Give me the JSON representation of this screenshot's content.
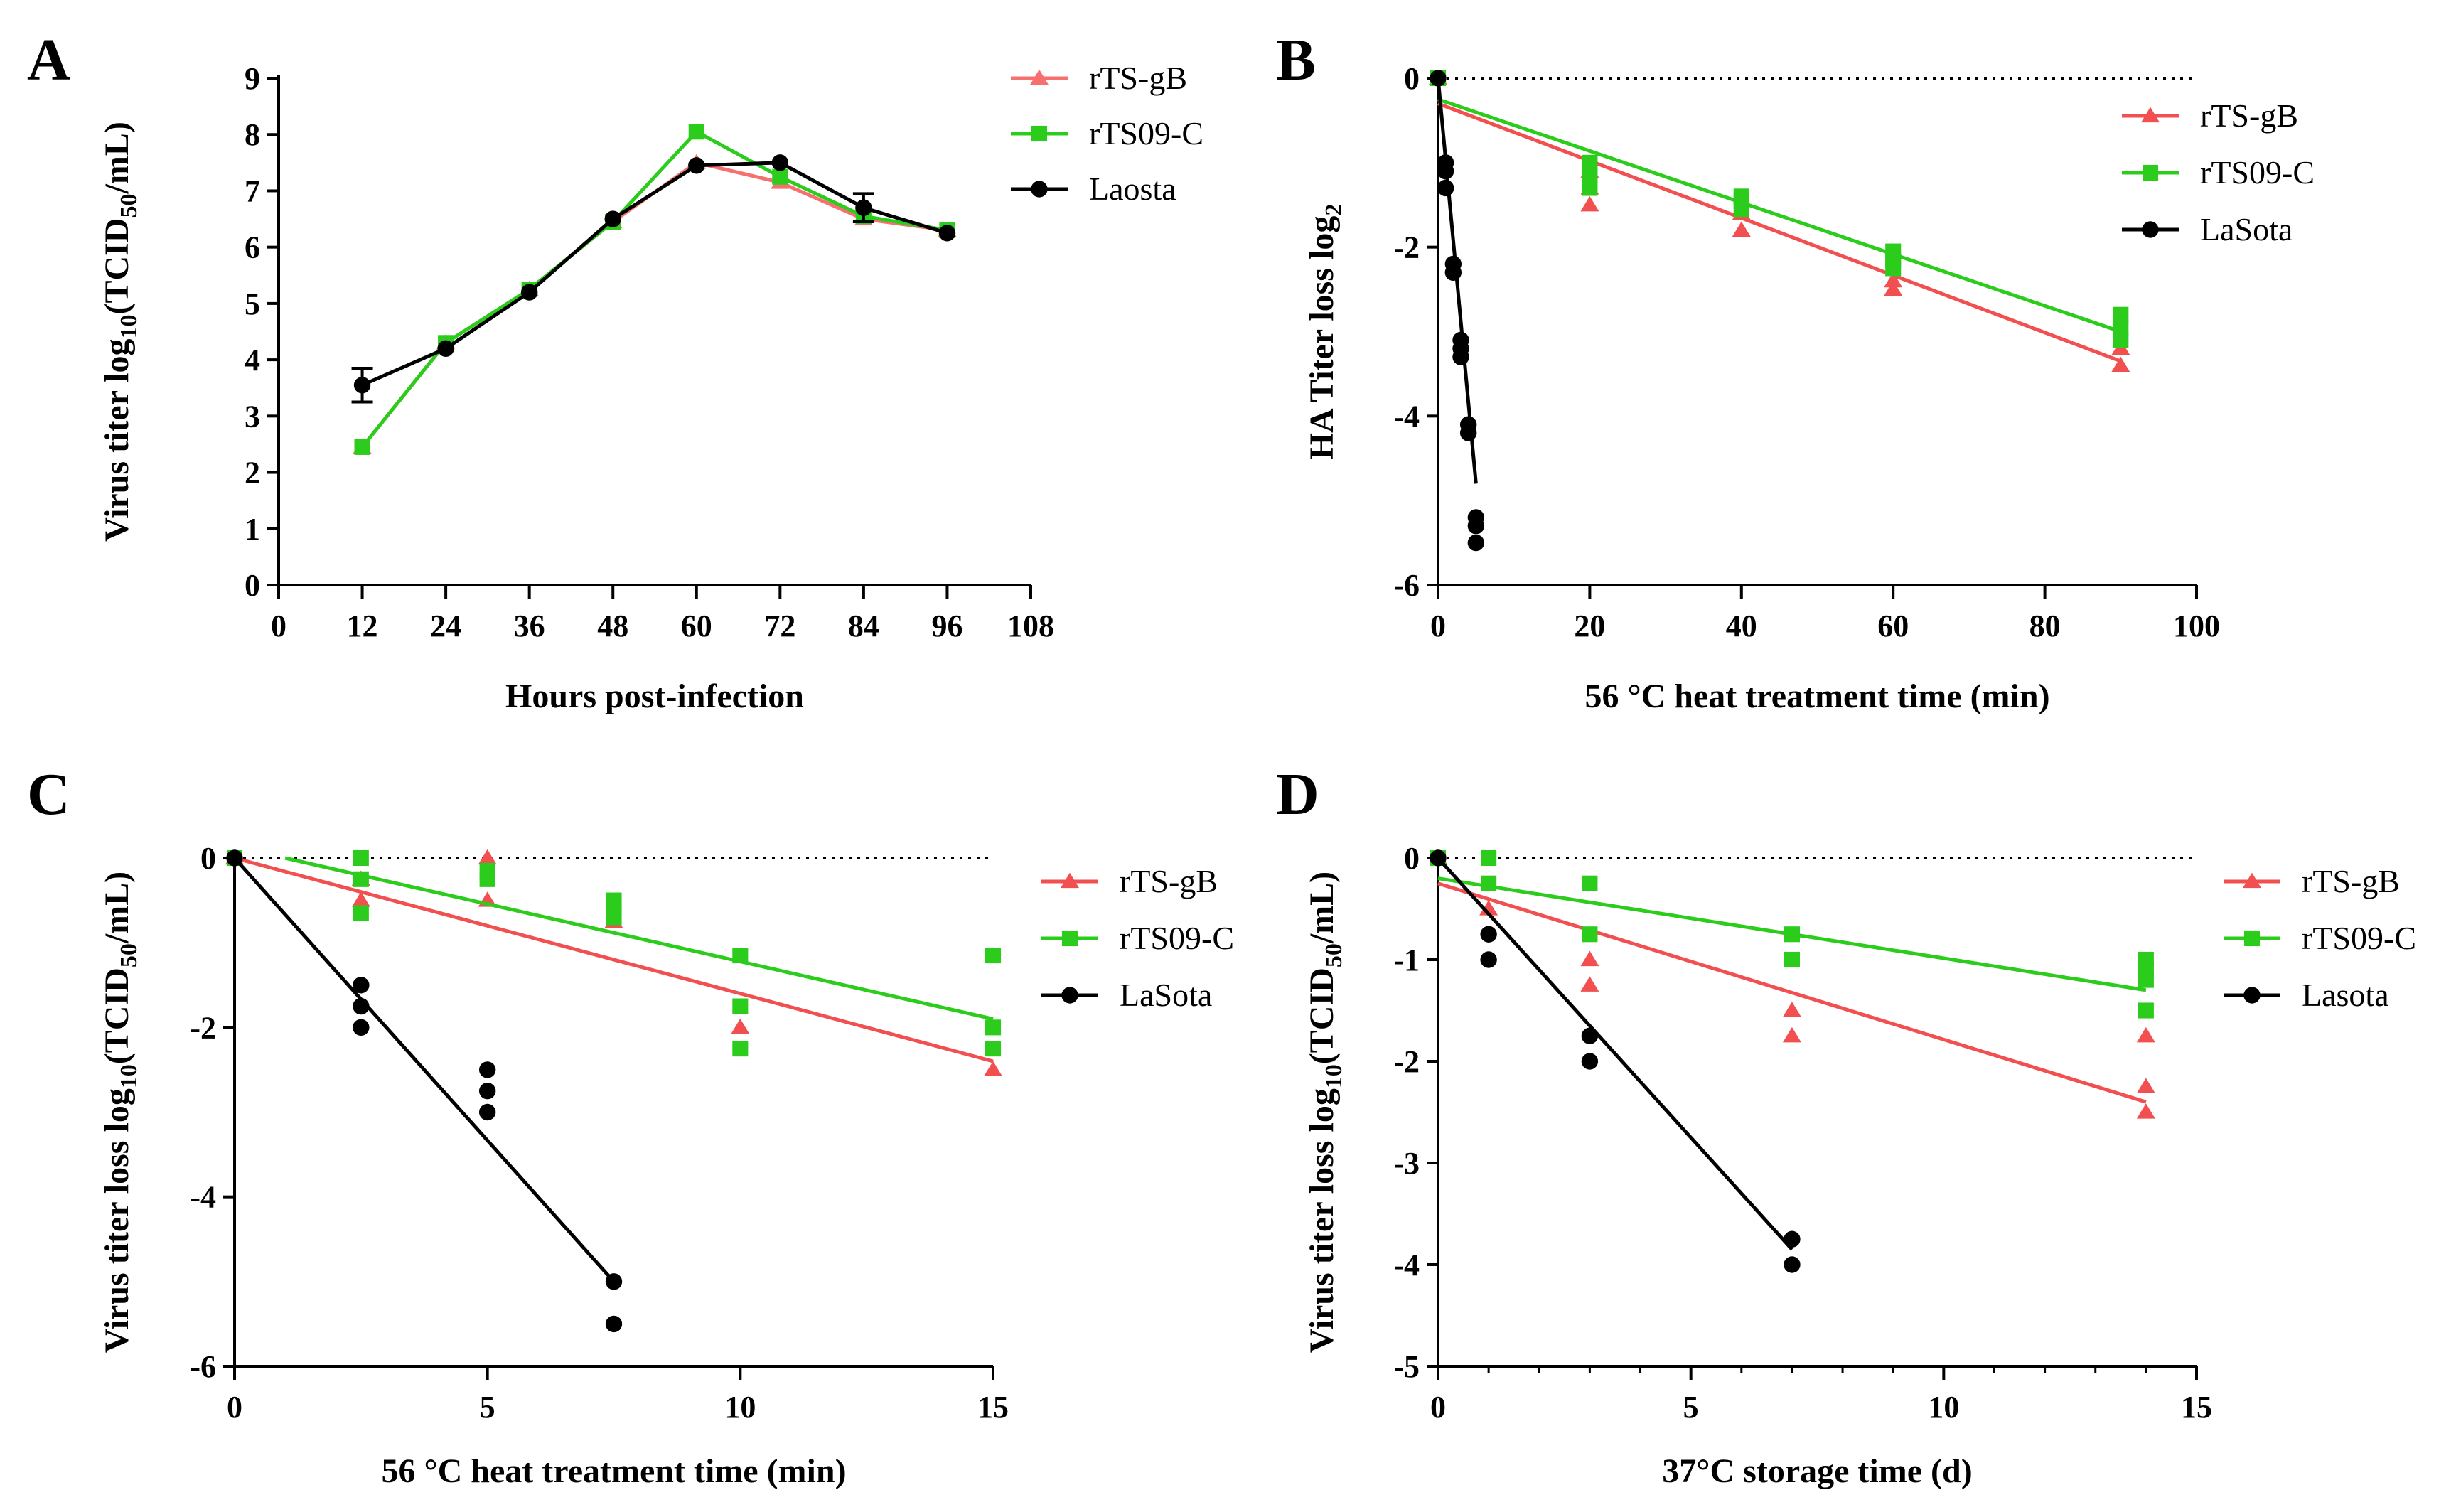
{
  "figure_colors": {
    "rTS-gB": "#f25050",
    "rTS09-C": "#2ccc1c",
    "LaSota": "#000000",
    "A_rTS-gB": "#f77070"
  },
  "chart_data": [
    {
      "panel": "A",
      "type": "line",
      "xlabel": "Hours post-infection",
      "ylabel": {
        "pre": "Virus titer log",
        "sub": "10",
        "mid": "(TCID",
        "sub2": "50",
        "post": "/mL)"
      },
      "xlim": [
        0,
        108
      ],
      "ylim": [
        0,
        9
      ],
      "xticks": [
        0,
        12,
        24,
        36,
        48,
        60,
        72,
        84,
        96,
        108
      ],
      "xtick_labels": [
        "0",
        "12",
        "24",
        "36",
        "48",
        "60",
        "72",
        "84",
        "96",
        "108"
      ],
      "yticks": [
        0,
        1,
        2,
        3,
        4,
        5,
        6,
        7,
        8,
        9
      ],
      "ytick_labels": [
        "0",
        "1",
        "2",
        "3",
        "4",
        "5",
        "6",
        "7",
        "8",
        "9"
      ],
      "series": [
        {
          "name": "rTS-gB",
          "key": "A_rTS-gB",
          "marker": "triangle",
          "x": [
            12,
            24,
            36,
            48,
            60,
            72,
            84,
            96
          ],
          "y": [
            2.45,
            4.3,
            5.25,
            6.45,
            7.5,
            7.15,
            6.5,
            6.3
          ]
        },
        {
          "name": "rTS09-C",
          "key": "rTS09-C",
          "marker": "square",
          "x": [
            12,
            24,
            36,
            48,
            60,
            72,
            84,
            96
          ],
          "y": [
            2.45,
            4.3,
            5.25,
            6.45,
            8.05,
            7.25,
            6.55,
            6.3
          ]
        },
        {
          "name": "Laosta",
          "key": "LaSota",
          "marker": "circle",
          "x": [
            12,
            24,
            36,
            48,
            60,
            72,
            84,
            96
          ],
          "y": [
            3.55,
            4.2,
            5.2,
            6.5,
            7.45,
            7.5,
            6.7,
            6.25
          ],
          "err": [
            0.3,
            0,
            0,
            0,
            0,
            0,
            0.25,
            0
          ]
        }
      ]
    },
    {
      "panel": "B",
      "type": "scatter",
      "xlabel": "56 °C heat treatment time (min)",
      "ylabel": {
        "pre": "HA Titer loss log",
        "sub": "2",
        "mid": "",
        "sub2": "",
        "post": ""
      },
      "xlim": [
        0,
        100
      ],
      "ylim": [
        -6,
        0
      ],
      "xticks": [
        0,
        20,
        40,
        60,
        80,
        100
      ],
      "xtick_labels": [
        "0",
        "20",
        "40",
        "60",
        "80",
        "100"
      ],
      "yticks": [
        -6,
        -4,
        -2,
        0
      ],
      "ytick_labels": [
        "-6",
        "-4",
        "-2",
        "0"
      ],
      "series": [
        {
          "name": "rTS-gB",
          "key": "rTS-gB",
          "marker": "triangle",
          "x": [
            0,
            20,
            20,
            20,
            40,
            40,
            60,
            60,
            90,
            90
          ],
          "y": [
            0,
            -1.5,
            -1.3,
            -1.1,
            -1.8,
            -1.6,
            -2.5,
            -2.4,
            -3.4,
            -3.2
          ],
          "fit": [
            [
              0,
              -0.3
            ],
            [
              90,
              -3.35
            ]
          ]
        },
        {
          "name": "rTS09-C",
          "key": "rTS09-C",
          "marker": "square",
          "x": [
            0,
            20,
            20,
            20,
            40,
            40,
            40,
            60,
            60,
            60,
            90,
            90,
            90
          ],
          "y": [
            0,
            -1.3,
            -1.15,
            -1.0,
            -1.55,
            -1.45,
            -1.4,
            -2.25,
            -2.15,
            -2.05,
            -3.1,
            -2.95,
            -2.8
          ],
          "fit": [
            [
              0,
              -0.25
            ],
            [
              90,
              -3.0
            ]
          ]
        },
        {
          "name": "LaSota",
          "key": "LaSota",
          "marker": "circle",
          "x": [
            0,
            1,
            1,
            1,
            2,
            2,
            3,
            3,
            3,
            4,
            4,
            5,
            5,
            5
          ],
          "y": [
            0,
            -1.0,
            -1.1,
            -1.3,
            -2.2,
            -2.3,
            -3.1,
            -3.2,
            -3.3,
            -4.1,
            -4.2,
            -5.2,
            -5.3,
            -5.5
          ],
          "fit": [
            [
              0,
              0
            ],
            [
              5,
              -4.8
            ]
          ]
        }
      ]
    },
    {
      "panel": "C",
      "type": "scatter",
      "xlabel": "56 °C heat treatment time (min)",
      "ylabel": {
        "pre": "Virus titer loss log",
        "sub": "10",
        "mid": "(TCID",
        "sub2": "50",
        "post": "/mL)"
      },
      "xlim": [
        0,
        15
      ],
      "ylim": [
        -6,
        0
      ],
      "xticks": [
        0,
        5,
        10,
        15
      ],
      "xtick_labels": [
        "0",
        "5",
        "10",
        "15"
      ],
      "yticks": [
        -6,
        -4,
        -2,
        0
      ],
      "ytick_labels": [
        "-6",
        "-4",
        "-2",
        "0"
      ],
      "series": [
        {
          "name": "rTS-gB",
          "key": "rTS-gB",
          "marker": "triangle",
          "x": [
            0,
            2.5,
            2.5,
            5,
            5,
            7.5,
            10,
            15
          ],
          "y": [
            0,
            -0.5,
            -0.25,
            0,
            -0.5,
            -0.75,
            -2.0,
            -2.5
          ],
          "fit": [
            [
              0,
              0
            ],
            [
              15,
              -2.4
            ]
          ]
        },
        {
          "name": "rTS09-C",
          "key": "rTS09-C",
          "marker": "square",
          "x": [
            0,
            2.5,
            2.5,
            2.5,
            5,
            5,
            7.5,
            7.5,
            7.5,
            10,
            10,
            10,
            15,
            15,
            15
          ],
          "y": [
            0,
            0,
            -0.25,
            -0.65,
            -0.15,
            -0.25,
            -0.5,
            -0.6,
            -0.7,
            -1.15,
            -1.75,
            -2.25,
            -1.15,
            -2.0,
            -2.25
          ],
          "fit": [
            [
              1,
              0
            ],
            [
              15,
              -1.9
            ]
          ]
        },
        {
          "name": "LaSota",
          "key": "LaSota",
          "marker": "circle",
          "x": [
            0,
            2.5,
            2.5,
            2.5,
            5,
            5,
            5,
            7.5,
            7.5
          ],
          "y": [
            0,
            -1.5,
            -1.75,
            -2.0,
            -2.5,
            -2.75,
            -3.0,
            -5.0,
            -5.5
          ],
          "fit": [
            [
              0,
              0
            ],
            [
              7.5,
              -5.0
            ]
          ]
        }
      ]
    },
    {
      "panel": "D",
      "type": "scatter",
      "xlabel": "37°C storage time (d)",
      "ylabel": {
        "pre": "Virus titer loss log",
        "sub": "10",
        "mid": "(TCID",
        "sub2": "50",
        "post": "/mL)"
      },
      "xlim": [
        0,
        15
      ],
      "ylim": [
        -5,
        0
      ],
      "xticks": [
        0,
        5,
        10,
        15
      ],
      "xtick_labels": [
        "0",
        "5",
        "10",
        "15"
      ],
      "minor_xticks": [
        1,
        2,
        3,
        4,
        6,
        7,
        8,
        9,
        11,
        12,
        13,
        14
      ],
      "yticks": [
        -5,
        -4,
        -3,
        -2,
        -1,
        0
      ],
      "ytick_labels": [
        "-5",
        "-4",
        "-3",
        "-2",
        "-1",
        "0"
      ],
      "series": [
        {
          "name": "rTS-gB",
          "key": "rTS-gB",
          "marker": "triangle",
          "x": [
            0,
            1,
            3,
            3,
            7,
            7,
            14,
            14,
            14
          ],
          "y": [
            0,
            -0.5,
            -1.0,
            -1.25,
            -1.5,
            -1.75,
            -1.75,
            -2.25,
            -2.5
          ],
          "fit": [
            [
              0,
              -0.25
            ],
            [
              14,
              -2.4
            ]
          ]
        },
        {
          "name": "rTS09-C",
          "key": "rTS09-C",
          "marker": "square",
          "x": [
            0,
            1,
            1,
            3,
            3,
            7,
            7,
            14,
            14,
            14,
            14
          ],
          "y": [
            0,
            0,
            -0.25,
            -0.25,
            -0.75,
            -0.75,
            -1.0,
            -1.0,
            -1.1,
            -1.2,
            -1.5
          ],
          "fit": [
            [
              0,
              -0.2
            ],
            [
              14,
              -1.3
            ]
          ]
        },
        {
          "name": "Lasota",
          "key": "LaSota",
          "marker": "circle",
          "x": [
            0,
            1,
            1,
            3,
            3,
            7,
            7
          ],
          "y": [
            0,
            -0.75,
            -1.0,
            -1.75,
            -2.0,
            -3.75,
            -4.0
          ],
          "fit": [
            [
              0,
              0
            ],
            [
              7,
              -3.85
            ]
          ]
        }
      ]
    }
  ]
}
